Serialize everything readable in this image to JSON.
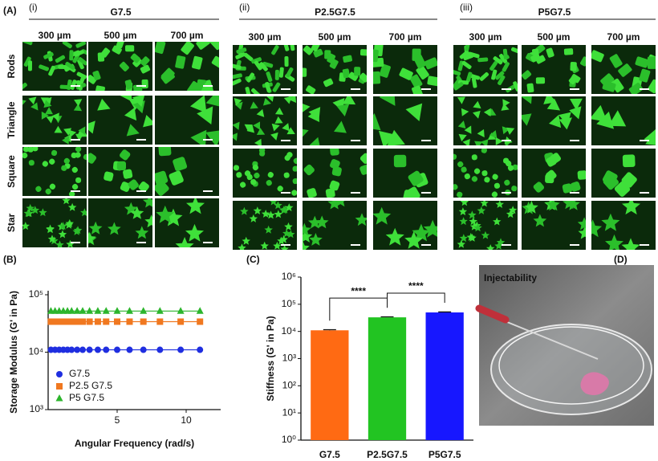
{
  "panel_labels": [
    "(A)",
    "(B)",
    "(C)",
    "(D)"
  ],
  "groups": [
    {
      "numeral": "(i)",
      "title": "G7.5"
    },
    {
      "numeral": "(ii)",
      "title": "P2.5G7.5"
    },
    {
      "numeral": "(iii)",
      "title": "P5G7.5"
    }
  ],
  "sizes": [
    "300 µm",
    "500 µm",
    "700 µm"
  ],
  "shapes": [
    "Rods",
    "Triangle",
    "Square",
    "Star"
  ],
  "photo_label": "Injectability",
  "chart_data": [
    {
      "type": "line",
      "ylabel": "Storage Modulus (G' in Pa)",
      "xlabel": "Angular Frequency (rad/s)",
      "log_y": true,
      "grid": false,
      "legend": "lower left",
      "x": [
        0.2,
        0.5,
        0.8,
        1.1,
        1.4,
        1.7,
        2.1,
        2.5,
        3.0,
        3.6,
        4.2,
        5.0,
        5.9,
        6.9,
        8.1,
        9.6,
        11.0
      ],
      "xlim": [
        0,
        12.5
      ],
      "xticks": [
        5,
        10
      ],
      "ylim": [
        1000,
        100000
      ],
      "yticks": [
        {
          "value": 1000,
          "label": "10³"
        },
        {
          "value": 10000,
          "label": "10⁴"
        },
        {
          "value": 100000,
          "label": "10⁵"
        }
      ],
      "series": [
        {
          "name": "G7.5",
          "color": "#1f2ee0",
          "marker": "circle",
          "values": [
            11000,
            11000,
            11000,
            11000,
            11000,
            11000,
            11000,
            11000,
            11000,
            11000,
            11000,
            11000,
            11000,
            11000,
            11000,
            11000,
            11000
          ]
        },
        {
          "name": "P2.5 G7.5",
          "color": "#f07820",
          "marker": "square",
          "values": [
            34000,
            34000,
            34000,
            34000,
            34000,
            34000,
            34000,
            34000,
            34000,
            34000,
            34000,
            34000,
            34000,
            34000,
            34000,
            34000,
            34000
          ]
        },
        {
          "name": "P5 G7.5",
          "color": "#2cb52c",
          "marker": "triangle",
          "values": [
            52000,
            52000,
            52000,
            52000,
            52000,
            52000,
            52000,
            52000,
            52000,
            52000,
            52000,
            52000,
            52000,
            52000,
            52000,
            52000,
            52000
          ]
        }
      ]
    },
    {
      "type": "bar",
      "ylabel": "Stiffness (G' in Pa)",
      "log_y": true,
      "categories": [
        "G7.5",
        "P2.5G7.5",
        "P5G7.5"
      ],
      "values": [
        11000,
        33000,
        50000
      ],
      "errors": [
        600,
        1500,
        2000
      ],
      "colors": [
        "#ff6a13",
        "#22c422",
        "#1717ff"
      ],
      "ylim": [
        1,
        1000000
      ],
      "yticks": [
        {
          "value": 1,
          "label": "10⁰"
        },
        {
          "value": 10,
          "label": "10¹"
        },
        {
          "value": 100,
          "label": "10²"
        },
        {
          "value": 1000,
          "label": "10³"
        },
        {
          "value": 10000,
          "label": "10⁴"
        },
        {
          "value": 100000,
          "label": "10⁵"
        },
        {
          "value": 1000000,
          "label": "10⁶"
        }
      ],
      "annotations": [
        "****",
        "****"
      ]
    }
  ]
}
